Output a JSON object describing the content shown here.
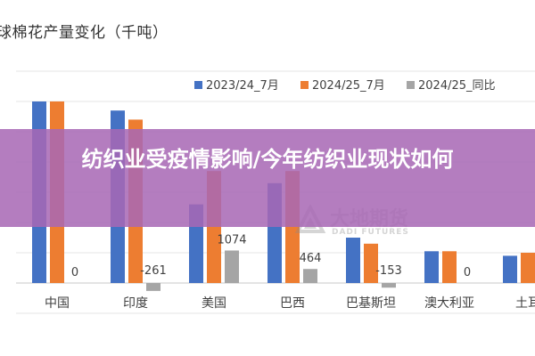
{
  "chart_data": {
    "type": "bar",
    "title": "球棉花产量变化（千吨）",
    "categories": [
      "中国",
      "印度",
      "美国",
      "巴西",
      "巴基斯坦",
      "澳大利亚",
      "土耳"
    ],
    "series": [
      {
        "name": "2023/24_7月",
        "color": "#4472C4",
        "values": [
          6000,
          5700,
          2600,
          3300,
          1500,
          1050,
          900
        ]
      },
      {
        "name": "2024/25_7月",
        "color": "#ED7D31",
        "values": [
          6000,
          5400,
          3700,
          3700,
          1300,
          1050,
          1000
        ]
      },
      {
        "name": "2024/25_同比",
        "color": "#A5A5A5",
        "values": [
          0,
          -261,
          1074,
          464,
          -153,
          0,
          null
        ],
        "labels": [
          "0",
          "-261",
          "1074",
          "464",
          "-153",
          "0",
          ""
        ]
      }
    ],
    "ylim": [
      -1000,
      7000
    ],
    "grid": true,
    "legend": "top-right"
  },
  "banner": {
    "title": "纺织业受疫情影响/今年纺织业现状如何"
  },
  "watermark": {
    "name_cn": "大地期货",
    "name_en": "DADI FUTURES"
  }
}
